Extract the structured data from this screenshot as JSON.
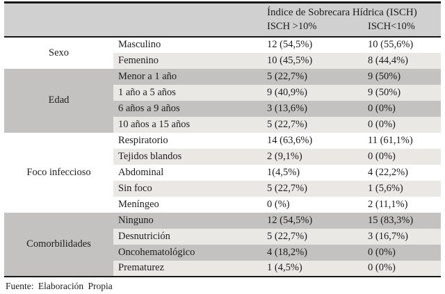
{
  "table": {
    "header": {
      "title": "Índice de Sobrecara Hídrica (ISCH)",
      "col_gt10": "ISCH >10%",
      "col_lt10": "ISCH<10%"
    },
    "groups": [
      {
        "label": "Sexo",
        "shaded": false,
        "rows": [
          {
            "category": "Masculino",
            "isch_gt10": "12 (54,5%)",
            "isch_lt10": "10 (55,6%)",
            "shade": "white"
          },
          {
            "category": "Femenino",
            "isch_gt10": "10 (45,5%)",
            "isch_lt10": "8 (44,4%)",
            "shade": "light"
          }
        ]
      },
      {
        "label": "Edad",
        "shaded": true,
        "rows": [
          {
            "category": "Menor a 1 año",
            "isch_gt10": "5 (22,7%)",
            "isch_lt10": "9 (50%)",
            "shade": "medium"
          },
          {
            "category": "1 año a 5 años",
            "isch_gt10": "9 (40,9%)",
            "isch_lt10": "9 (50%)",
            "shade": "light"
          },
          {
            "category": "6 años a 9 años",
            "isch_gt10": "3 (13,6%)",
            "isch_lt10": "0 (0%)",
            "shade": "medium"
          },
          {
            "category": "10 años a 15 años",
            "isch_gt10": "5 (22,7%)",
            "isch_lt10": "0 (0%)",
            "shade": "light"
          }
        ]
      },
      {
        "label": "Foco infeccioso",
        "shaded": false,
        "rows": [
          {
            "category": "Respiratorio",
            "isch_gt10": "14 (63,6%)",
            "isch_lt10": "11 (61,1%)",
            "shade": "white"
          },
          {
            "category": "Tejidos blandos",
            "isch_gt10": "2 (9,1%)",
            "isch_lt10": "0 (0%)",
            "shade": "light"
          },
          {
            "category": "Abdominal",
            "isch_gt10": "1(4,5%)",
            "isch_lt10": "4 (22,2%)",
            "shade": "white"
          },
          {
            "category": "Sin foco",
            "isch_gt10": "5 (22,7%)",
            "isch_lt10": "1 (5,6%)",
            "shade": "light"
          },
          {
            "category": "Meníngeo",
            "isch_gt10": "0 (%)",
            "isch_lt10": "2 (11,1%)",
            "shade": "white"
          }
        ]
      },
      {
        "label": "Comorbilidades",
        "shaded": true,
        "rows": [
          {
            "category": "Ninguno",
            "isch_gt10": "12 (54,5%)",
            "isch_lt10": "15 (83,3%)",
            "shade": "medium"
          },
          {
            "category": "Desnutrición",
            "isch_gt10": "5 (22,7%)",
            "isch_lt10": "3 (16,7%)",
            "shade": "light"
          },
          {
            "category": "Oncohematológico",
            "isch_gt10": "4 (18,2%)",
            "isch_lt10": "0 (0%)",
            "shade": "medium"
          },
          {
            "category": "Prematurez",
            "isch_gt10": "1 (4,5%)",
            "isch_lt10": "0 (0%)",
            "shade": "light"
          }
        ]
      }
    ],
    "footer": "Fuente: Elaboración Propia"
  },
  "colors": {
    "header_bg": "#d0d0d0",
    "row_medium": "#c3c2c0",
    "row_light": "#e9e8e5",
    "border": "#161616",
    "text": "#1c1c1c"
  }
}
